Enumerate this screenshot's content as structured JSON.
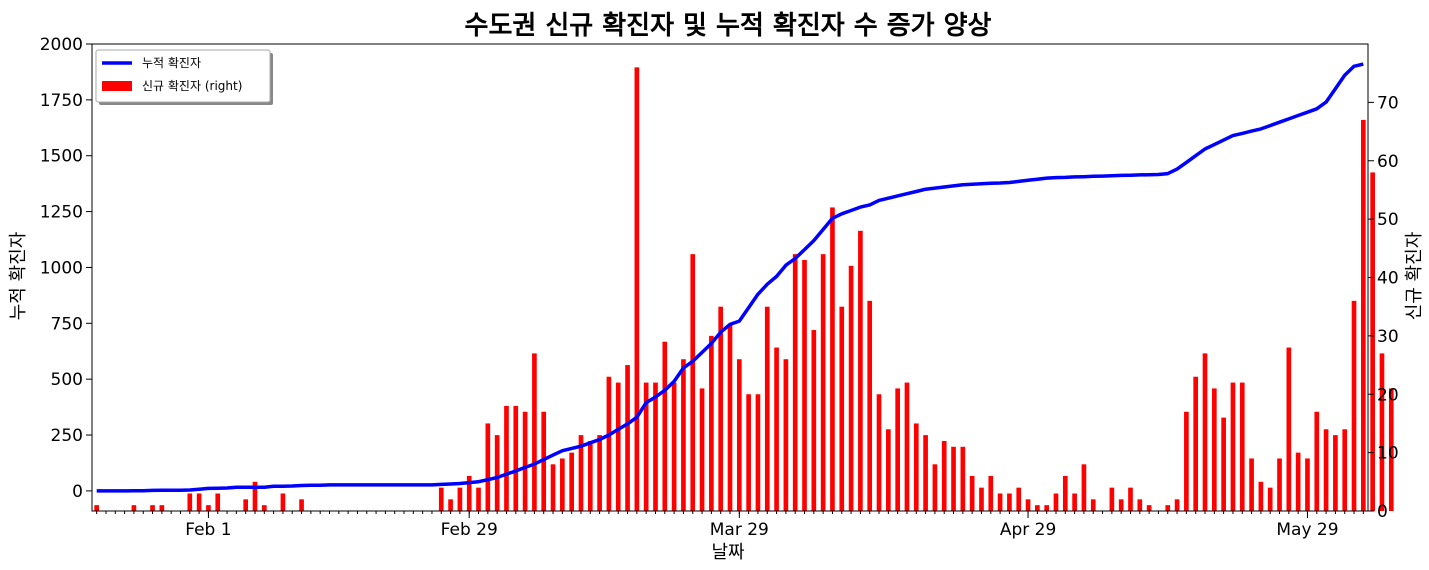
{
  "chart_data": {
    "type": "bar+line",
    "title": "수도권 신규 확진자 및 누적 확진자 수 증가 양상",
    "xlabel": "날짜",
    "ylabel_left": "누적 확진자",
    "ylabel_right": "신규 확진자",
    "start_date": "2020-01-20",
    "xtick_labels": [
      "Feb 1",
      "Feb 29",
      "Mar 29",
      "Apr 29",
      "May 29"
    ],
    "xtick_days": [
      12,
      40,
      69,
      100,
      130
    ],
    "ylim_left": [
      -90,
      2000
    ],
    "yticks_left": [
      0,
      250,
      500,
      750,
      1000,
      1250,
      1500,
      1750,
      2000
    ],
    "ylim_right": [
      0,
      80
    ],
    "yticks_right": [
      0,
      10,
      20,
      30,
      40,
      50,
      60,
      70
    ],
    "grid": false,
    "legend": {
      "position": "upper-left",
      "entries": [
        {
          "label": "누적 확진자",
          "color": "#0000ff",
          "kind": "line"
        },
        {
          "label": "신규 확진자 (right)",
          "color": "#ff0000",
          "kind": "bar"
        }
      ]
    },
    "series": [
      {
        "name": "누적 확진자",
        "axis": "left",
        "color": "#0000ff",
        "values": [
          0,
          0,
          0,
          0,
          1,
          1,
          2,
          3,
          3,
          3,
          4,
          7,
          11,
          12,
          13,
          16,
          16,
          16,
          16,
          21,
          21,
          22,
          24,
          25,
          25,
          27,
          27,
          27,
          27,
          27,
          27,
          27,
          27,
          27,
          27,
          27,
          27,
          29,
          31,
          33,
          37,
          41,
          50,
          60,
          75,
          89,
          105,
          120,
          140,
          160,
          180,
          190,
          200,
          215,
          230,
          250,
          275,
          300,
          330,
          395,
          420,
          450,
          490,
          550,
          580,
          620,
          660,
          710,
          745,
          760,
          820,
          880,
          925,
          960,
          1010,
          1040,
          1080,
          1120,
          1170,
          1220,
          1240,
          1255,
          1270,
          1280,
          1300,
          1310,
          1320,
          1330,
          1340,
          1350,
          1355,
          1360,
          1365,
          1370,
          1372,
          1375,
          1377,
          1378,
          1380,
          1385,
          1390,
          1395,
          1400,
          1402,
          1403,
          1405,
          1406,
          1408,
          1409,
          1410,
          1412,
          1413,
          1414,
          1415,
          1416,
          1420,
          1440,
          1470,
          1500,
          1530,
          1550,
          1570,
          1590,
          1600,
          1610,
          1620,
          1635,
          1650,
          1665,
          1680,
          1695,
          1710,
          1740,
          1800,
          1860,
          1900,
          1910
        ]
      },
      {
        "name": "신규 확진자 (right)",
        "axis": "right",
        "color": "#ff0000",
        "values": [
          1,
          0,
          0,
          0,
          1,
          0,
          1,
          1,
          0,
          0,
          3,
          3,
          1,
          3,
          0,
          0,
          2,
          5,
          1,
          0,
          3,
          0,
          2,
          0,
          0,
          0,
          0,
          0,
          0,
          0,
          0,
          0,
          0,
          0,
          0,
          0,
          0,
          4,
          2,
          4,
          6,
          4,
          15,
          13,
          18,
          18,
          17,
          27,
          17,
          8,
          9,
          10,
          13,
          12,
          13,
          23,
          22,
          25,
          76,
          22,
          22,
          29,
          22,
          26,
          44,
          21,
          30,
          35,
          32,
          26,
          20,
          20,
          35,
          28,
          26,
          44,
          43,
          31,
          44,
          52,
          35,
          42,
          48,
          36,
          20,
          14,
          21,
          22,
          15,
          13,
          8,
          12,
          11,
          11,
          6,
          4,
          6,
          3,
          3,
          4,
          2,
          1,
          1,
          3,
          6,
          3,
          8,
          2,
          0,
          4,
          2,
          4,
          2,
          1,
          0,
          1,
          2,
          17,
          23,
          27,
          21,
          16,
          22,
          22,
          9,
          5,
          4,
          9,
          28,
          10,
          9,
          17,
          14,
          13,
          14,
          36,
          67,
          58,
          27,
          21
        ]
      }
    ]
  }
}
